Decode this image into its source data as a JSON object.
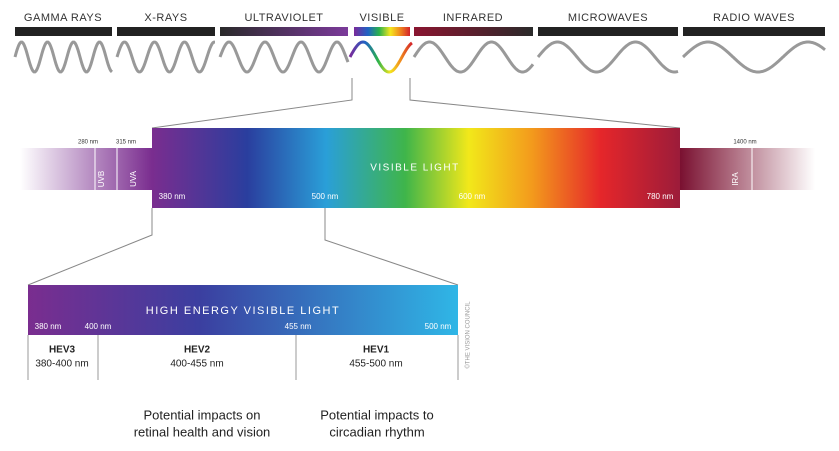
{
  "spectrum": {
    "bands": [
      {
        "label": "GAMMA RAYS"
      },
      {
        "label": "X-RAYS"
      },
      {
        "label": "ULTRAVIOLET"
      },
      {
        "label": "VISIBLE"
      },
      {
        "label": "INFRARED"
      },
      {
        "label": "MICROWAVES"
      },
      {
        "label": "RADIO WAVES"
      }
    ]
  },
  "visible_light": {
    "title": "VISIBLE LIGHT",
    "left": {
      "marks": [
        "280 nm",
        "315 nm"
      ],
      "bands": [
        "UVB",
        "UVA"
      ]
    },
    "right": {
      "mark": "1400 nm",
      "band": "IRA"
    },
    "ticks": [
      "380 nm",
      "500 nm",
      "600 nm",
      "780 nm"
    ]
  },
  "hev": {
    "title": "HIGH ENERGY VISIBLE LIGHT",
    "ticks": [
      "380 nm",
      "400 nm",
      "455 nm",
      "500 nm"
    ],
    "groups": [
      {
        "name": "HEV3",
        "range": "380-400 nm"
      },
      {
        "name": "HEV2",
        "range": "400-455 nm"
      },
      {
        "name": "HEV1",
        "range": "455-500 nm"
      }
    ],
    "credit": "©THE VISION COUNCIL"
  },
  "notes": [
    {
      "lines": [
        "Potential impacts on",
        "retinal health and vision"
      ]
    },
    {
      "lines": [
        "Potential impacts to",
        "circadian rhythm"
      ]
    }
  ]
}
